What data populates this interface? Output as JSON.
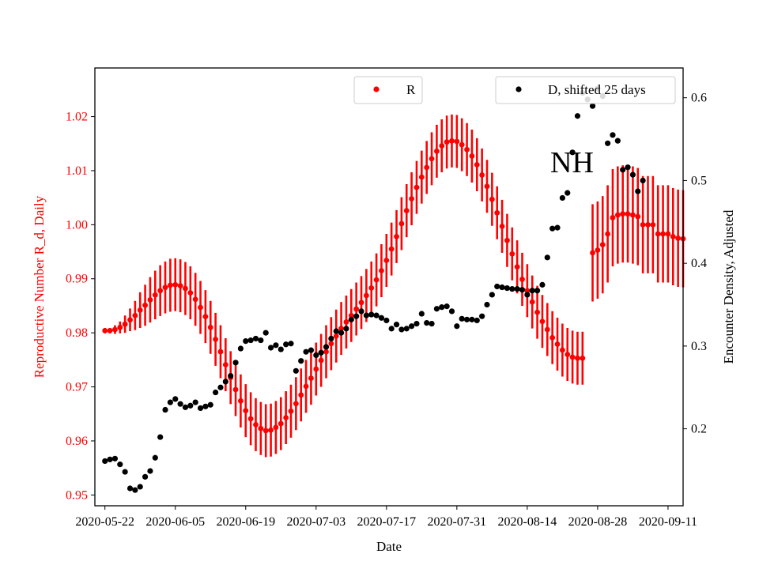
{
  "chart_data": {
    "type": "scatter",
    "xlabel": "Date",
    "ylabel_left": "Reproductive Number R_d, Daily",
    "ylabel_right": "Encounter Density, Adjusted",
    "annotation": "NH",
    "x_start": "2020-05-22",
    "x_end": "2020-09-11",
    "xlim": [
      "2020-05-20",
      "2020-09-14"
    ],
    "x_ticks": [
      "2020-05-22",
      "2020-06-05",
      "2020-06-19",
      "2020-07-03",
      "2020-07-17",
      "2020-07-31",
      "2020-08-14",
      "2020-08-28",
      "2020-09-11"
    ],
    "ylim_left": [
      0.948,
      1.029
    ],
    "y_ticks_left": [
      "0.95",
      "0.96",
      "0.97",
      "0.98",
      "0.99",
      "1.00",
      "1.01",
      "1.02"
    ],
    "ylim_right": [
      0.107,
      0.636
    ],
    "y_ticks_right": [
      "0.2",
      "0.3",
      "0.4",
      "0.5",
      "0.6"
    ],
    "colors": {
      "R": "#ff0000",
      "D": "#000000",
      "left_axis": "#ff0000",
      "right_axis": "#000000"
    },
    "legend": [
      {
        "label": "R",
        "color": "#ff0000",
        "position": "top-center"
      },
      {
        "label": "D, shifted 25 days",
        "color": "#000000",
        "position": "top-right"
      }
    ],
    "series": [
      {
        "name": "R",
        "axis": "left",
        "start_date": "2020-05-22",
        "y": [
          0.9804,
          0.9804,
          0.9806,
          0.981,
          0.9816,
          0.9824,
          0.9832,
          0.9842,
          0.9851,
          0.9861,
          0.987,
          0.9878,
          0.9884,
          0.9888,
          0.9889,
          0.9887,
          0.9882,
          0.9874,
          0.9862,
          0.9847,
          0.983,
          0.981,
          0.9788,
          0.9765,
          0.9741,
          0.9717,
          0.9695,
          0.9674,
          0.9656,
          0.9641,
          0.963,
          0.9623,
          0.9619,
          0.962,
          0.9625,
          0.9632,
          0.9643,
          0.9655,
          0.9669,
          0.9685,
          0.9701,
          0.9716,
          0.9733,
          0.9749,
          0.9765,
          0.978,
          0.9794,
          0.9808,
          0.982,
          0.9832,
          0.9844,
          0.9856,
          0.9869,
          0.9883,
          0.9898,
          0.9915,
          0.9934,
          0.9955,
          0.9978,
          1.0002,
          1.0026,
          1.0048,
          1.0069,
          1.0088,
          1.0106,
          1.0122,
          1.0136,
          1.0146,
          1.0153,
          1.0155,
          1.0154,
          1.0148,
          1.0139,
          1.0127,
          1.0111,
          1.0092,
          1.0071,
          1.0047,
          1.0022,
          0.9997,
          0.9971,
          0.9946,
          0.9922,
          0.9899,
          0.9878,
          0.9857,
          0.9838,
          0.9821,
          0.9806,
          0.9791,
          0.9779,
          0.9768,
          0.976,
          0.9755,
          0.9753,
          0.9753,
          null,
          0.9948,
          0.9953,
          0.9963,
          0.9983,
          1.0013,
          1.0018,
          1.002,
          1.002,
          1.0018,
          1.0015,
          1.0,
          1.0,
          1.0,
          0.9983,
          0.9983,
          0.9983,
          0.9978,
          0.9975,
          0.9974
        ],
        "err": [
          0.0005,
          0.0005,
          0.0008,
          0.0011,
          0.0016,
          0.0021,
          0.0027,
          0.0033,
          0.0038,
          0.0042,
          0.0045,
          0.0047,
          0.0048,
          0.0049,
          0.0049,
          0.0049,
          0.0049,
          0.0049,
          0.0049,
          0.0049,
          0.0049,
          0.0049,
          0.0049,
          0.0049,
          0.0049,
          0.0049,
          0.0049,
          0.0049,
          0.0049,
          0.0049,
          0.0049,
          0.0049,
          0.0049,
          0.0049,
          0.0049,
          0.0049,
          0.0049,
          0.0049,
          0.0049,
          0.0049,
          0.0049,
          0.0049,
          0.0049,
          0.0049,
          0.0049,
          0.0049,
          0.0049,
          0.0049,
          0.0049,
          0.0049,
          0.0049,
          0.0049,
          0.0049,
          0.0049,
          0.0049,
          0.0049,
          0.0049,
          0.0049,
          0.0049,
          0.0049,
          0.0049,
          0.0049,
          0.0049,
          0.0049,
          0.0049,
          0.0049,
          0.0049,
          0.0049,
          0.0049,
          0.0049,
          0.0049,
          0.0049,
          0.0049,
          0.0049,
          0.0049,
          0.0049,
          0.0049,
          0.0049,
          0.0049,
          0.0049,
          0.0049,
          0.0049,
          0.0049,
          0.0049,
          0.0049,
          0.0049,
          0.0049,
          0.0049,
          0.0049,
          0.0049,
          0.0049,
          0.0049,
          0.0049,
          0.0049,
          0.0049,
          0.0049,
          null,
          0.009,
          0.009,
          0.009,
          0.009,
          0.009,
          0.009,
          0.009,
          0.009,
          0.009,
          0.009,
          0.009,
          0.009,
          0.009,
          0.009,
          0.009,
          0.009,
          0.009,
          0.009,
          0.009
        ]
      },
      {
        "name": "D, shifted 25 days",
        "axis": "right",
        "start_date": "2020-05-22",
        "y": [
          0.161,
          0.163,
          0.164,
          0.157,
          0.148,
          0.128,
          0.126,
          0.13,
          0.142,
          0.149,
          0.165,
          0.19,
          0.223,
          0.232,
          0.236,
          0.23,
          0.226,
          0.228,
          0.232,
          0.225,
          0.227,
          0.229,
          0.244,
          0.25,
          0.257,
          0.264,
          0.28,
          0.297,
          0.306,
          0.307,
          0.309,
          0.307,
          0.316,
          0.298,
          0.301,
          0.296,
          0.302,
          0.303,
          0.27,
          0.282,
          0.293,
          0.295,
          0.289,
          0.292,
          0.299,
          0.309,
          0.318,
          0.316,
          0.321,
          0.332,
          0.336,
          0.342,
          0.337,
          0.338,
          0.337,
          0.334,
          0.331,
          0.321,
          0.326,
          0.32,
          0.321,
          0.324,
          0.327,
          0.339,
          0.328,
          0.327,
          0.345,
          0.347,
          0.348,
          0.342,
          0.324,
          0.333,
          0.332,
          0.332,
          0.331,
          0.336,
          0.35,
          0.362,
          0.372,
          0.371,
          0.37,
          0.369,
          0.369,
          0.368,
          0.362,
          0.367,
          0.367,
          0.374,
          0.407,
          0.442,
          0.443,
          0.479,
          0.485,
          0.534,
          0.578,
          0.606,
          0.598,
          0.59,
          0.611,
          0.602,
          0.545,
          0.555,
          0.548,
          0.513,
          0.516,
          0.507,
          0.487,
          0.5
        ]
      }
    ]
  }
}
